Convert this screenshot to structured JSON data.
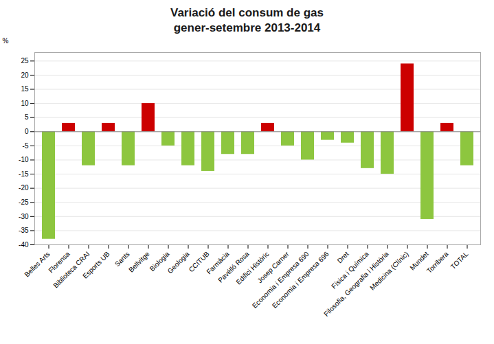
{
  "chart_data": {
    "type": "bar",
    "title": "Variació del consum de gas",
    "subtitle": "gener-setembre 2013-2014",
    "ylabel": "%",
    "categories": [
      "Belles Arts",
      "Florensa",
      "Biblioteca CRAI",
      "Esports UB",
      "Sants",
      "Bellvitge",
      "Biologia",
      "Geologia",
      "CCITUB",
      "Farmàcia",
      "Pavélló Rosa",
      "Edifici Històric",
      "Josep Carner",
      "Economia i Empresa 690",
      "Economia i Empresa 696",
      "Dret",
      "Física i Química",
      "Filosofia, Geografia i Història",
      "Medicina (Clínic)",
      "Mundet",
      "Torribera",
      "TOTAL"
    ],
    "values": [
      -38,
      3,
      -12,
      3,
      -12,
      10,
      -5,
      -12,
      -14,
      -8,
      -8,
      3,
      -5,
      -10,
      -3,
      -4,
      -13,
      -15,
      24,
      -31,
      3,
      -12
    ],
    "colors": [
      "#8dc63f",
      "#cc0000",
      "#8dc63f",
      "#cc0000",
      "#8dc63f",
      "#cc0000",
      "#8dc63f",
      "#8dc63f",
      "#8dc63f",
      "#8dc63f",
      "#8dc63f",
      "#cc0000",
      "#8dc63f",
      "#8dc63f",
      "#8dc63f",
      "#8dc63f",
      "#8dc63f",
      "#8dc63f",
      "#cc0000",
      "#8dc63f",
      "#cc0000",
      "#8dc63f"
    ],
    "ylim": [
      -40,
      28
    ],
    "yticks": [
      -40,
      -35,
      -30,
      -25,
      -20,
      -15,
      -10,
      -5,
      0,
      5,
      10,
      15,
      20,
      25
    ],
    "grid": true
  }
}
